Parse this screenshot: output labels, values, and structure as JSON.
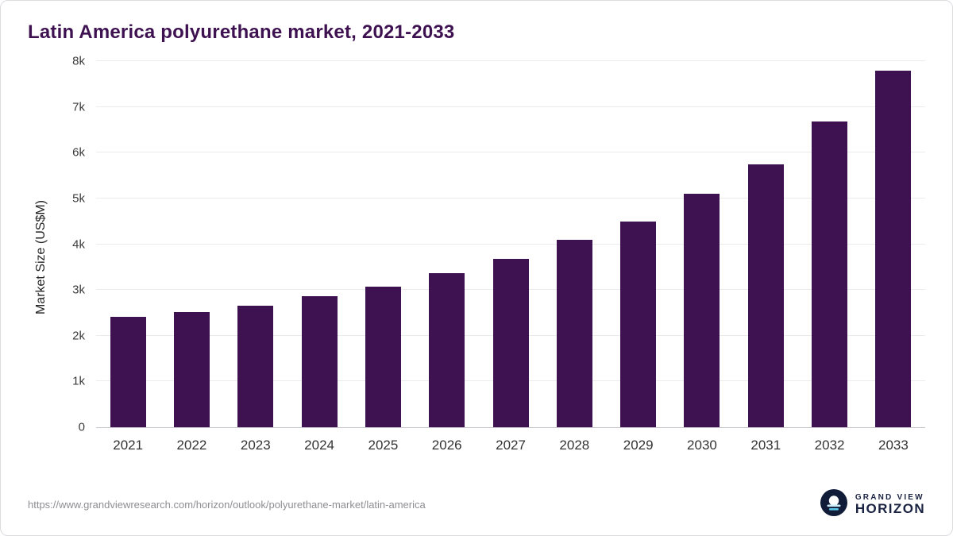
{
  "title": "Latin America polyurethane market, 2021-2033",
  "source_url": "https://www.grandviewresearch.com/horizon/outlook/polyurethane-market/latin-america",
  "logo": {
    "top": "GRAND VIEW",
    "bottom": "HORIZON"
  },
  "colors": {
    "bar": "#3E1151",
    "title": "#3E1151",
    "grid": "#ebebee",
    "axis": "#c7c7cd",
    "logo_circle": "#101c38",
    "logo_sun": "#ffffff",
    "logo_accent": "#5bc6e8"
  },
  "chart_data": {
    "type": "bar",
    "categories": [
      "2021",
      "2022",
      "2023",
      "2024",
      "2025",
      "2026",
      "2027",
      "2028",
      "2029",
      "2030",
      "2031",
      "2032",
      "2033"
    ],
    "values": [
      2410,
      2520,
      2660,
      2860,
      3080,
      3360,
      3680,
      4090,
      4500,
      5100,
      5750,
      6680,
      7800
    ],
    "title": "Latin America polyurethane market, 2021-2033",
    "xlabel": "",
    "ylabel": "Market Size (US$M)",
    "ylim": [
      0,
      8000
    ],
    "yticks": [
      "0",
      "1k",
      "2k",
      "3k",
      "4k",
      "5k",
      "6k",
      "7k",
      "8k"
    ],
    "grid": true,
    "legend": false
  }
}
